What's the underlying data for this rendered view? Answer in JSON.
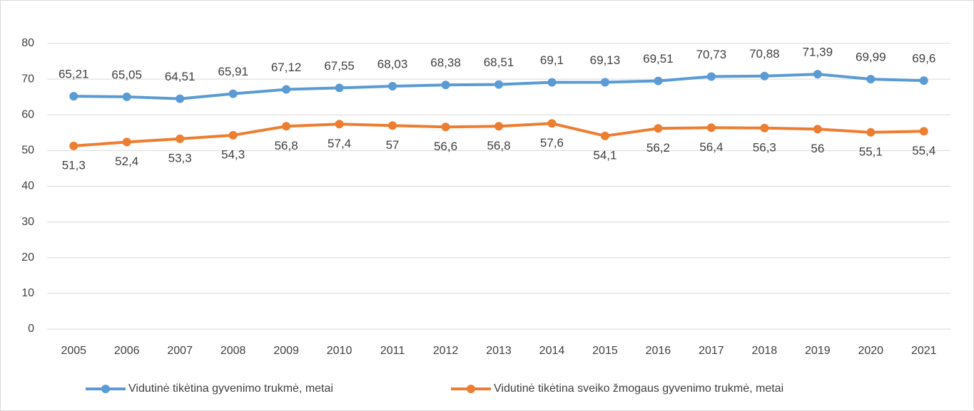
{
  "chart_data": {
    "type": "line",
    "categories": [
      "2005",
      "2006",
      "2007",
      "2008",
      "2009",
      "2010",
      "2011",
      "2012",
      "2013",
      "2014",
      "2015",
      "2016",
      "2017",
      "2018",
      "2019",
      "2020",
      "2021"
    ],
    "series": [
      {
        "name": "Vidutinė tikėtina gyvenimo trukmė, metai",
        "color": "#5b9bd5",
        "values": [
          65.21,
          65.05,
          64.51,
          65.91,
          67.12,
          67.55,
          68.03,
          68.38,
          68.51,
          69.1,
          69.13,
          69.51,
          70.73,
          70.88,
          71.39,
          69.99,
          69.6
        ],
        "value_labels": [
          "65,21",
          "65,05",
          "64,51",
          "65,91",
          "67,12",
          "67,55",
          "68,03",
          "68,38",
          "68,51",
          "69,1",
          "69,13",
          "69,51",
          "70,73",
          "70,88",
          "71,39",
          "69,99",
          "69,6"
        ]
      },
      {
        "name": "Vidutinė tikėtina sveiko žmogaus gyvenimo trukmė, metai",
        "color": "#ed7d31",
        "values": [
          51.3,
          52.4,
          53.3,
          54.3,
          56.8,
          57.4,
          57,
          56.6,
          56.8,
          57.6,
          54.1,
          56.2,
          56.4,
          56.3,
          56,
          55.1,
          55.4
        ],
        "value_labels": [
          "51,3",
          "52,4",
          "53,3",
          "54,3",
          "56,8",
          "57,4",
          "57",
          "56,6",
          "56,8",
          "57,6",
          "54,1",
          "56,2",
          "56,4",
          "56,3",
          "56",
          "55,1",
          "55,4"
        ]
      }
    ],
    "ylim": [
      0,
      80
    ],
    "yticks": [
      0,
      10,
      20,
      30,
      40,
      50,
      60,
      70,
      80
    ],
    "grid": true,
    "legend": "bottom"
  }
}
